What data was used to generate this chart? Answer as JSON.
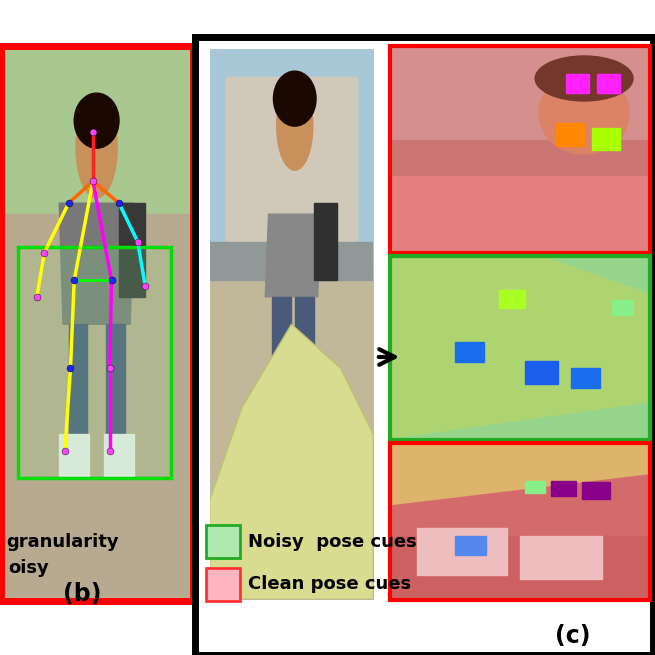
{
  "fig_width": 6.55,
  "fig_height": 6.55,
  "fig_dpi": 100,
  "bg_color": "#ffffff",
  "panel_b_border": "red",
  "panel_b_border_lw": 5,
  "panel_c_border": "black",
  "panel_c_border_lw": 5,
  "label_b": "(b)",
  "label_c": "(c)",
  "text1": "granularity",
  "text2": "oisy",
  "legend_noisy_label": "Noisy  pose cues",
  "legend_clean_label": "Clean pose cues",
  "legend_noisy_color": "#aeeaae",
  "legend_noisy_border": "#22aa22",
  "legend_clean_color": "#ffb6c1",
  "legend_clean_border": "#ff3333",
  "arrow_color": "#000000"
}
